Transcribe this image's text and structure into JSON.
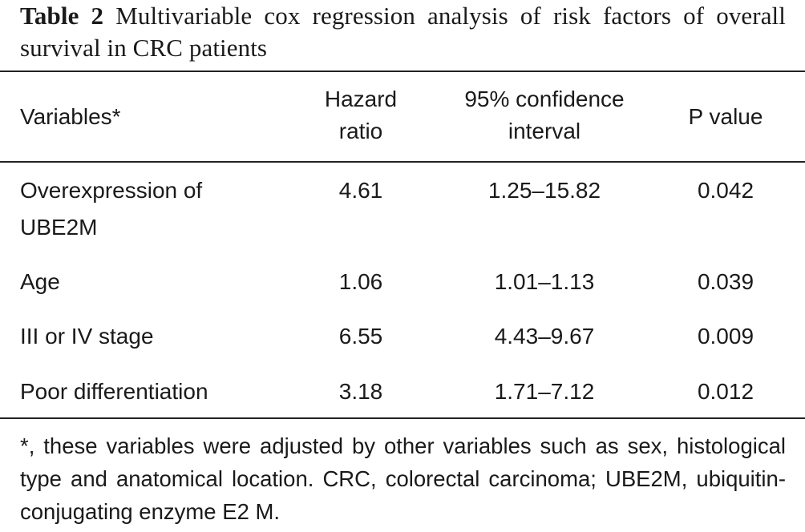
{
  "caption": {
    "label": "Table 2",
    "text": "Multivariable cox regression analysis of risk factors of overall survival in CRC patients"
  },
  "table": {
    "headers": {
      "variables": "Variables*",
      "hazard_ratio_line1": "Hazard",
      "hazard_ratio_line2": "ratio",
      "ci_line1": "95% confidence",
      "ci_line2": "interval",
      "p_value": "P value"
    },
    "rows": [
      {
        "variable_line1": "Overexpression of",
        "variable_line2": "UBE2M",
        "hazard_ratio": "4.61",
        "ci": "1.25–15.82",
        "p_value": "0.042"
      },
      {
        "variable_line1": "Age",
        "hazard_ratio": "1.06",
        "ci": "1.01–1.13",
        "p_value": "0.039"
      },
      {
        "variable_line1": "III or IV stage",
        "hazard_ratio": "6.55",
        "ci": "4.43–9.67",
        "p_value": "0.009"
      },
      {
        "variable_line1": "Poor differentiation",
        "hazard_ratio": "3.18",
        "ci": "1.71–7.12",
        "p_value": "0.012"
      }
    ]
  },
  "footnote": "*, these variables were adjusted by other variables such as sex, histological type and anatomical location. CRC, colorectal carcinoma; UBE2M, ubiquitin-conjugating enzyme E2 M."
}
